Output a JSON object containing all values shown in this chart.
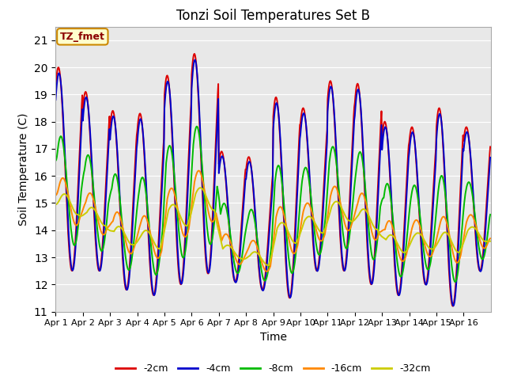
{
  "title": "Tonzi Soil Temperatures Set B",
  "xlabel": "Time",
  "ylabel": "Soil Temperature (C)",
  "ylim": [
    11.0,
    21.5
  ],
  "yticks": [
    11.0,
    12.0,
    13.0,
    14.0,
    15.0,
    16.0,
    17.0,
    18.0,
    19.0,
    20.0,
    21.0
  ],
  "background_color": "#e8e8e8",
  "legend_label": "TZ_fmet",
  "series_colors": {
    "-2cm": "#dd0000",
    "-4cm": "#0000cc",
    "-8cm": "#00bb00",
    "-16cm": "#ff8800",
    "-32cm": "#cccc00"
  },
  "x_tick_labels": [
    "Apr 1",
    "Apr 2",
    "Apr 3",
    "Apr 4",
    "Apr 5",
    "Apr 6",
    "Apr 7",
    "Apr 8",
    "Apr 9",
    "Apr 10",
    "Apr 11",
    "Apr 12",
    "Apr 13",
    "Apr 14",
    "Apr 15",
    "Apr 16"
  ],
  "n_days": 16,
  "points_per_day": 48,
  "figsize": [
    6.4,
    4.8
  ],
  "dpi": 100
}
